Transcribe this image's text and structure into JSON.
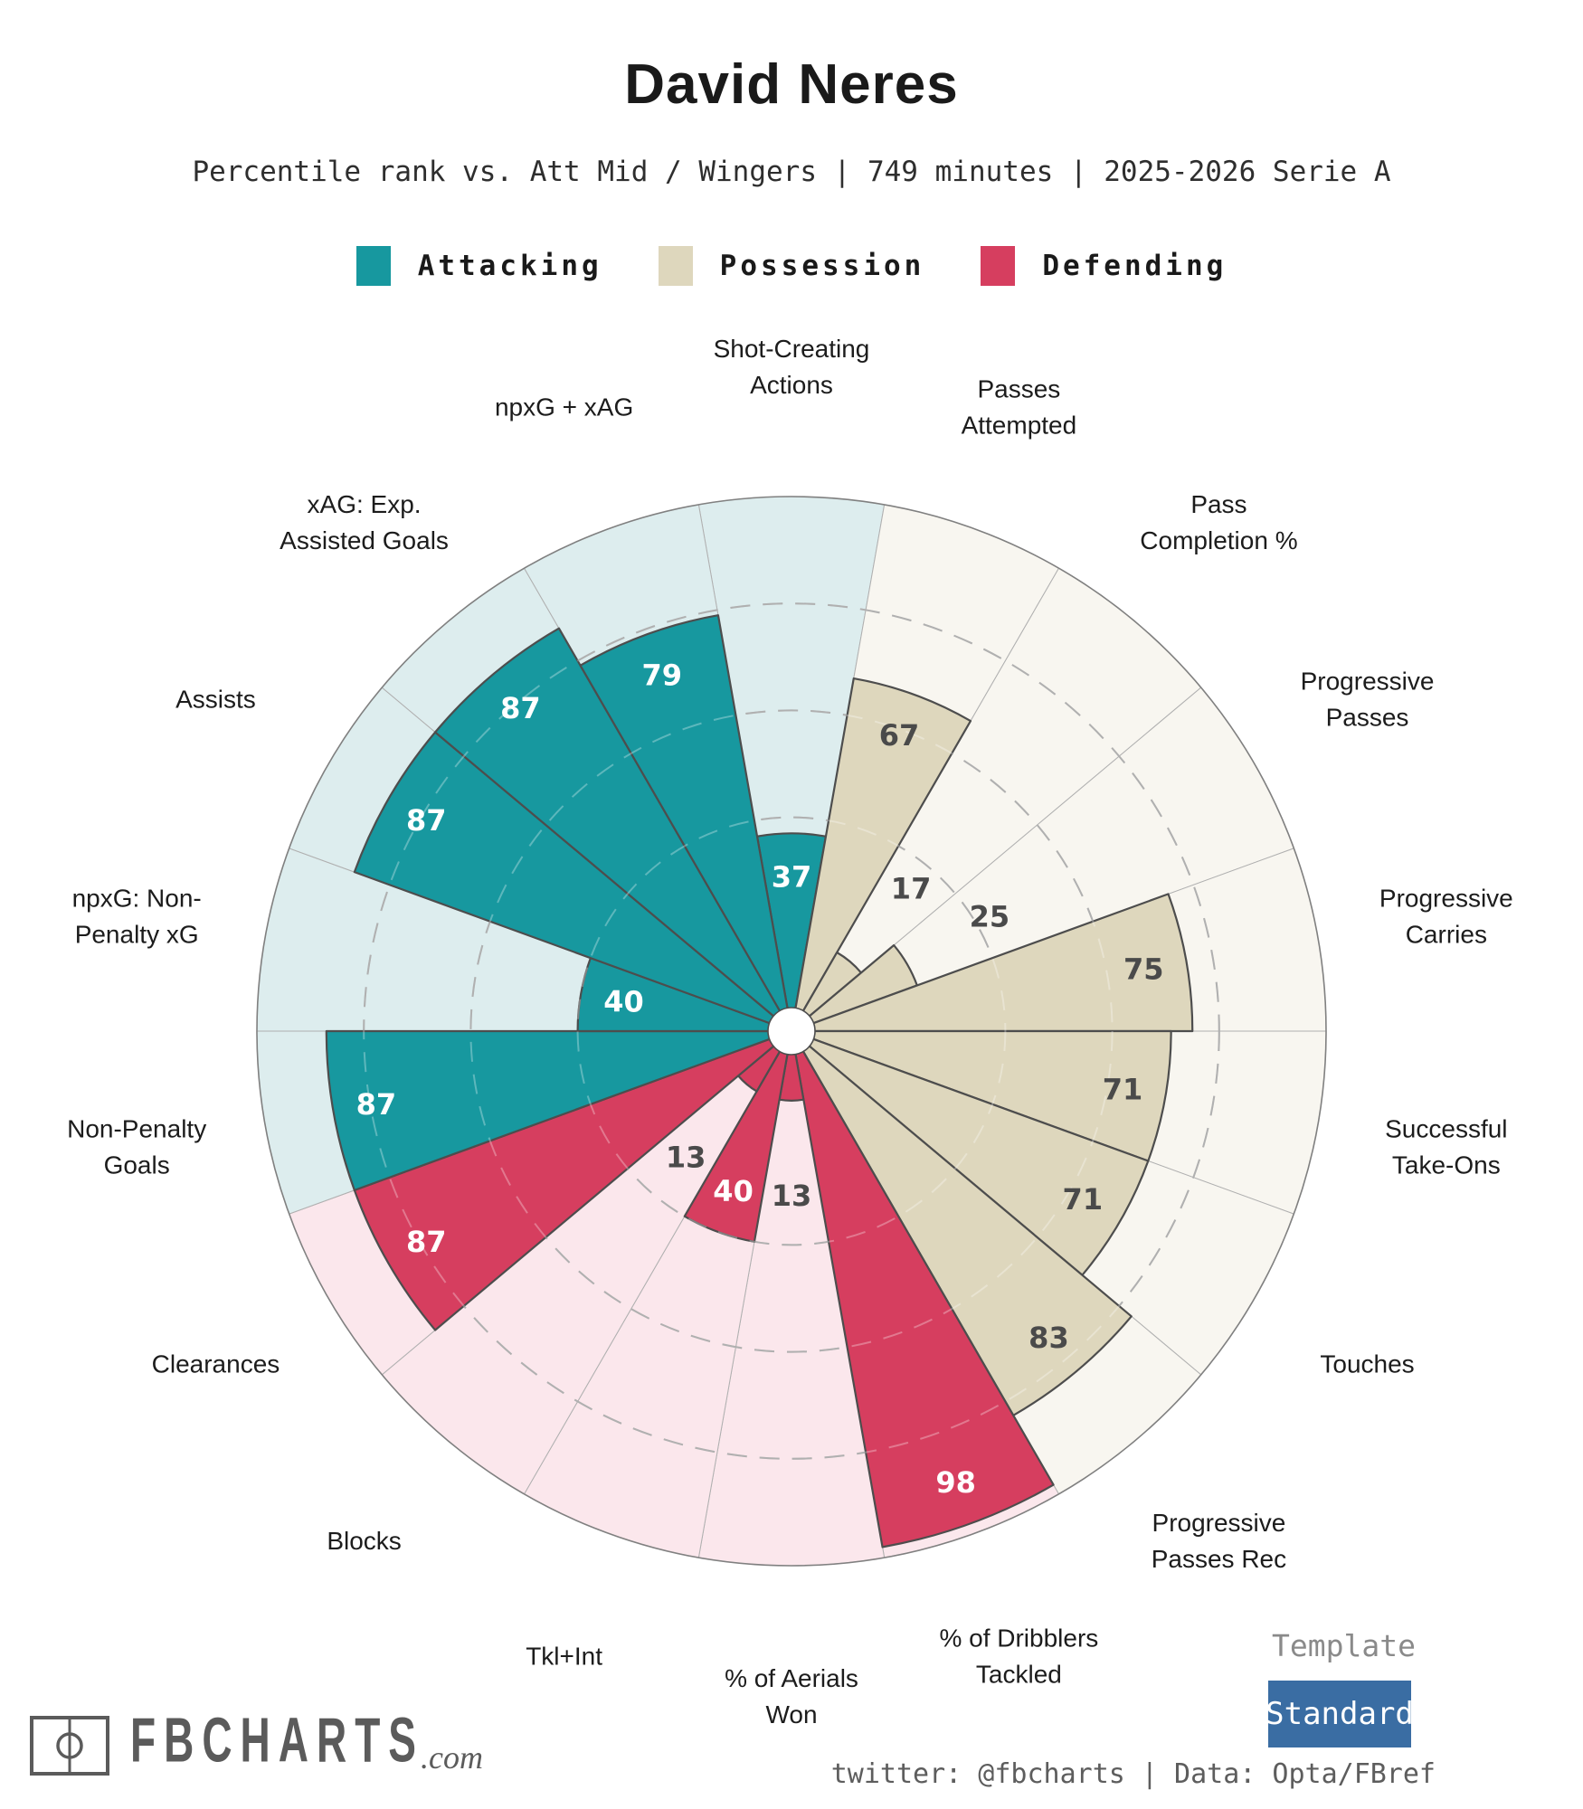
{
  "title": "David Neres",
  "subtitle": "Percentile rank vs. Att Mid / Wingers | 749 minutes | 2025-2026 Serie A",
  "colors": {
    "attacking_fill": "#17989f",
    "attacking_bg": "#ddedee",
    "possession_fill": "#ded7bd",
    "possession_bg": "#f8f6f0",
    "defending_fill": "#d63e5f",
    "defending_bg": "#fbe7ec",
    "slice_outline": "#4d4d4d",
    "grid_line": "#8f8f8f",
    "value_text_dark": "#4a4a4a",
    "value_text_light": "#ffffff",
    "button_blue": "#3a6da3"
  },
  "chart_data": {
    "type": "pizza",
    "title": "David Neres",
    "subtitle": "Percentile rank vs. Att Mid / Wingers | 749 minutes | 2025-2026 Serie A",
    "scale": {
      "min": 0,
      "max": 100
    },
    "gridlines_percent": [
      40,
      60,
      80
    ],
    "grid_style": "dashed-rings",
    "legend_position": "top",
    "groups": [
      {
        "name": "Attacking",
        "fill": "#17989f",
        "bg": "#ddedee",
        "value_text": "#ffffff"
      },
      {
        "name": "Possession",
        "fill": "#ded7bd",
        "bg": "#f8f6f0",
        "value_text": "#4a4a4a"
      },
      {
        "name": "Defending",
        "fill": "#d63e5f",
        "bg": "#fbe7ec",
        "value_text": "#ffffff"
      }
    ],
    "slices": [
      {
        "label": "Shot-Creating Actions",
        "label_lines": [
          "Shot-Creating",
          "Actions"
        ],
        "value": 37,
        "group": "Attacking"
      },
      {
        "label": "Passes Attempted",
        "label_lines": [
          "Passes",
          "Attempted"
        ],
        "value": 67,
        "group": "Possession"
      },
      {
        "label": "Pass Completion %",
        "label_lines": [
          "Pass",
          "Completion %"
        ],
        "value": 17,
        "group": "Possession"
      },
      {
        "label": "Progressive Passes",
        "label_lines": [
          "Progressive",
          "Passes"
        ],
        "value": 25,
        "group": "Possession"
      },
      {
        "label": "Progressive Carries",
        "label_lines": [
          "Progressive",
          "Carries"
        ],
        "value": 75,
        "group": "Possession"
      },
      {
        "label": "Successful Take-Ons",
        "label_lines": [
          "Successful",
          "Take-Ons"
        ],
        "value": 71,
        "group": "Possession"
      },
      {
        "label": "Touches",
        "label_lines": [
          "Touches"
        ],
        "value": 71,
        "group": "Possession"
      },
      {
        "label": "Progressive Passes Rec",
        "label_lines": [
          "Progressive",
          "Passes Rec"
        ],
        "value": 83,
        "group": "Possession"
      },
      {
        "label": "% of Dribblers Tackled",
        "label_lines": [
          "% of Dribblers",
          "Tackled"
        ],
        "value": 98,
        "group": "Defending"
      },
      {
        "label": "% of Aerials Won",
        "label_lines": [
          "% of Aerials",
          "Won"
        ],
        "value": 13,
        "group": "Defending"
      },
      {
        "label": "Tkl+Int",
        "label_lines": [
          "Tkl+Int"
        ],
        "value": 40,
        "group": "Defending"
      },
      {
        "label": "Blocks",
        "label_lines": [
          "Blocks"
        ],
        "value": 13,
        "group": "Defending"
      },
      {
        "label": "Clearances",
        "label_lines": [
          "Clearances"
        ],
        "value": 87,
        "group": "Defending"
      },
      {
        "label": "Non-Penalty Goals",
        "label_lines": [
          "Non-Penalty",
          "Goals"
        ],
        "value": 87,
        "group": "Attacking"
      },
      {
        "label": "npxG: Non-Penalty xG",
        "label_lines": [
          "npxG: Non-",
          "Penalty xG"
        ],
        "value": 40,
        "group": "Attacking"
      },
      {
        "label": "Assists",
        "label_lines": [
          "Assists"
        ],
        "value": 87,
        "group": "Attacking"
      },
      {
        "label": "xAG: Exp. Assisted Goals",
        "label_lines": [
          "xAG: Exp.",
          "Assisted Goals"
        ],
        "value": 87,
        "group": "Attacking"
      },
      {
        "label": "npxG + xAG",
        "label_lines": [
          "npxG + xAG"
        ],
        "value": 79,
        "group": "Attacking"
      }
    ]
  },
  "footer": {
    "logo_text": "FBCHARTS",
    "logo_suffix": ".com",
    "template_label": "Template",
    "template_value": "Standard",
    "credit": "twitter: @fbcharts | Data: Opta/FBref"
  }
}
